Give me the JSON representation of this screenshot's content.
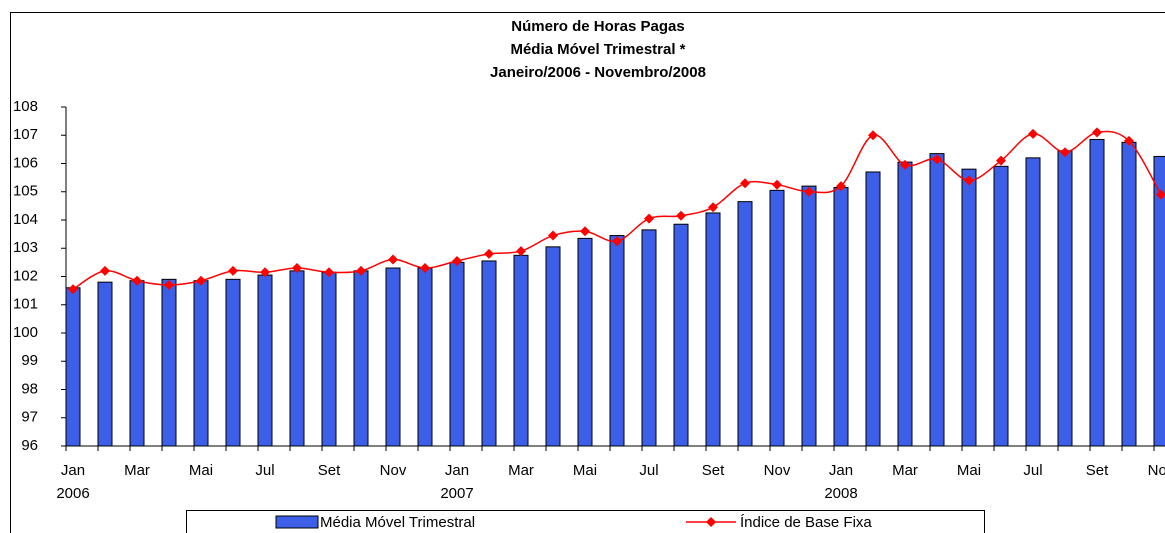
{
  "chart_data": {
    "type": "bar-line",
    "title": "Número de Horas Pagas",
    "subtitle": "Média Móvel Trimestral *",
    "period": "Janeiro/2006 - Novembro/2008",
    "categories": [
      "Jan",
      null,
      "Mar",
      null,
      "Mai",
      null,
      "Jul",
      null,
      "Set",
      null,
      "Nov",
      null,
      "Jan",
      null,
      "Mar",
      null,
      "Mai",
      null,
      "Jul",
      null,
      "Set",
      null,
      "Nov",
      null,
      "Jan",
      null,
      "Mar",
      null,
      "Mai",
      null,
      "Jul",
      null,
      "Set",
      null,
      "Nov"
    ],
    "category_years": [
      "2006",
      null,
      null,
      null,
      null,
      null,
      null,
      null,
      null,
      null,
      null,
      null,
      "2007",
      null,
      null,
      null,
      null,
      null,
      null,
      null,
      null,
      null,
      null,
      null,
      "2008",
      null,
      null,
      null,
      null,
      null,
      null,
      null,
      null,
      null,
      null
    ],
    "series": [
      {
        "name": "Média Móvel Trimestral",
        "kind": "bar",
        "color": "#3d5fe8",
        "values": [
          101.6,
          101.8,
          101.85,
          101.9,
          101.85,
          101.9,
          102.05,
          102.2,
          102.15,
          102.2,
          102.3,
          102.3,
          102.5,
          102.55,
          102.75,
          103.05,
          103.35,
          103.45,
          103.65,
          103.85,
          104.25,
          104.65,
          105.05,
          105.2,
          105.15,
          105.7,
          106.05,
          106.35,
          105.8,
          105.9,
          106.2,
          106.45,
          106.85,
          106.75,
          106.25
        ]
      },
      {
        "name": "Índice de Base Fixa",
        "kind": "line",
        "color": "#ff0000",
        "values": [
          101.55,
          102.2,
          101.85,
          101.7,
          101.85,
          102.2,
          102.15,
          102.3,
          102.15,
          102.2,
          102.6,
          102.3,
          102.55,
          102.8,
          102.9,
          103.45,
          103.6,
          103.25,
          104.05,
          104.15,
          104.45,
          105.3,
          105.25,
          105.0,
          105.2,
          107.0,
          105.95,
          106.15,
          105.4,
          106.1,
          107.05,
          106.4,
          107.1,
          106.8,
          104.9
        ]
      }
    ],
    "ylim": [
      96,
      108
    ],
    "yticks": [
      96,
      97,
      98,
      99,
      100,
      101,
      102,
      103,
      104,
      105,
      106,
      107,
      108
    ],
    "grid": false
  }
}
